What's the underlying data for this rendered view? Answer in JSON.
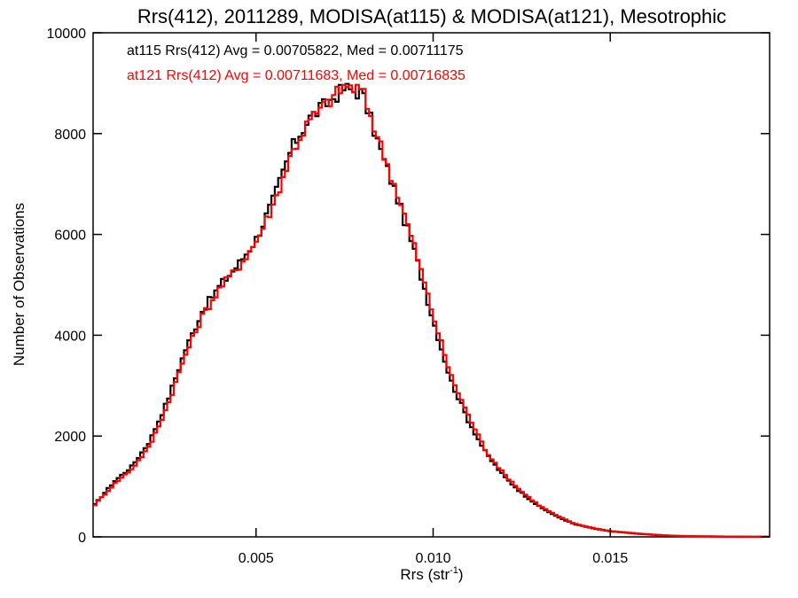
{
  "chart_data": {
    "type": "line",
    "step": true,
    "title": "Rrs(412), 2011289, MODISA(at115) & MODISA(at121), Mesotrophic",
    "xlabel": "Rrs (str",
    "xlabel_sup": "-1",
    "xlabel_end": ")",
    "ylabel": "Number of Observations",
    "xlim": [
      0.0004,
      0.0195
    ],
    "ylim": [
      0,
      10000
    ],
    "x_ticks": [
      {
        "value": 0.005,
        "label": "0.005"
      },
      {
        "value": 0.01,
        "label": "0.010"
      },
      {
        "value": 0.015,
        "label": "0.015"
      }
    ],
    "y_ticks": [
      {
        "value": 0,
        "label": "0"
      },
      {
        "value": 2000,
        "label": "2000"
      },
      {
        "value": 4000,
        "label": "4000"
      },
      {
        "value": 6000,
        "label": "6000"
      },
      {
        "value": 8000,
        "label": "8000"
      },
      {
        "value": 10000,
        "label": "10000"
      }
    ],
    "grid": false,
    "legend_position": "top-left",
    "series": [
      {
        "name": "at115 Rrs(412) Avg = 0.00705822, Med = 0.00711175",
        "color": "#000000",
        "x": [
          0.0004,
          0.001,
          0.0015,
          0.002,
          0.0025,
          0.003,
          0.0035,
          0.004,
          0.0045,
          0.005,
          0.0055,
          0.006,
          0.0065,
          0.007,
          0.0075,
          0.008,
          0.0085,
          0.009,
          0.0095,
          0.01,
          0.0105,
          0.011,
          0.0115,
          0.012,
          0.0125,
          0.013,
          0.0135,
          0.014,
          0.0145,
          0.015,
          0.0155,
          0.016,
          0.0165,
          0.017,
          0.0175,
          0.018,
          0.0185,
          0.019,
          0.0195
        ],
        "y": [
          600,
          1100,
          1400,
          1900,
          2700,
          3700,
          4500,
          5000,
          5400,
          5900,
          6700,
          7700,
          8300,
          8600,
          8900,
          8800,
          7700,
          6700,
          5600,
          4300,
          3100,
          2300,
          1650,
          1200,
          870,
          600,
          400,
          250,
          170,
          110,
          80,
          50,
          30,
          15,
          10,
          8,
          5,
          3,
          2
        ]
      },
      {
        "name": "at121 Rrs(412) Avg = 0.00711683, Med = 0.00716835",
        "color": "#ff0000",
        "x": [
          0.0004,
          0.001,
          0.0015,
          0.002,
          0.0025,
          0.003,
          0.0035,
          0.004,
          0.0045,
          0.005,
          0.0055,
          0.006,
          0.0065,
          0.007,
          0.0075,
          0.008,
          0.0085,
          0.009,
          0.0095,
          0.01,
          0.0105,
          0.011,
          0.0115,
          0.012,
          0.0125,
          0.013,
          0.0135,
          0.014,
          0.0145,
          0.015,
          0.0155,
          0.016,
          0.0165,
          0.017,
          0.0175,
          0.018,
          0.0185,
          0.019,
          0.0195
        ],
        "y": [
          600,
          1050,
          1350,
          1800,
          2600,
          3600,
          4400,
          4950,
          5350,
          5850,
          6600,
          7600,
          8250,
          8600,
          8950,
          8850,
          7800,
          6800,
          5700,
          4400,
          3200,
          2400,
          1700,
          1250,
          900,
          620,
          420,
          260,
          180,
          115,
          85,
          55,
          32,
          18,
          12,
          9,
          6,
          4,
          2
        ]
      }
    ]
  }
}
